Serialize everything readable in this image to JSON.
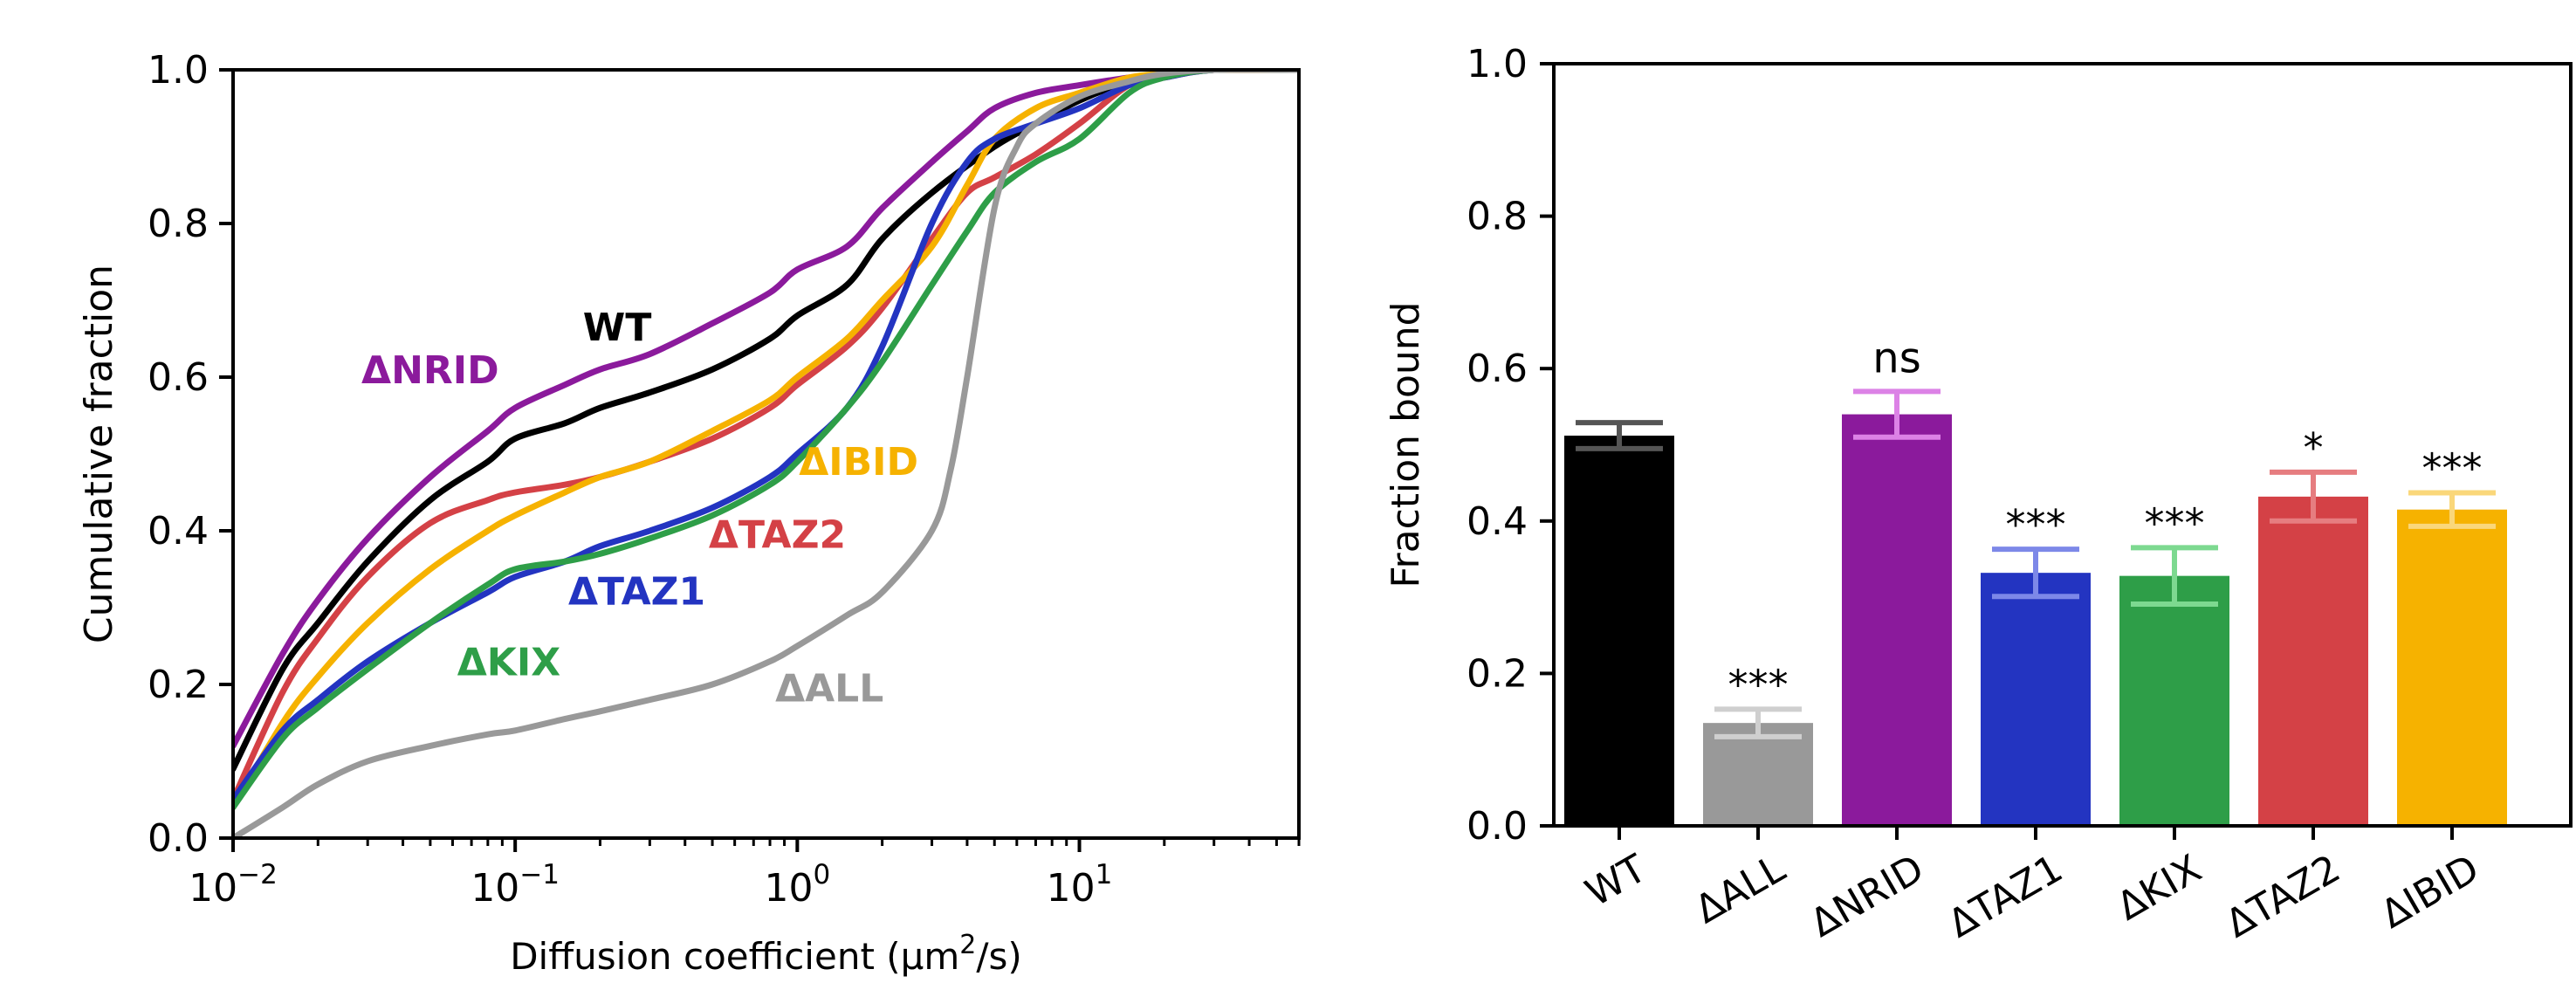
{
  "chart_data": [
    {
      "type": "line",
      "xscale": "log",
      "xlim": [
        0.01,
        60
      ],
      "ylim": [
        0.0,
        1.0
      ],
      "xlabel": "Diffusion coefficient (μm",
      "xlabel_sup": "2",
      "xlabel_tail": "/s)",
      "ylabel": "Cumulative fraction",
      "x_ticks": [
        {
          "value": 0.01,
          "base": "10",
          "exp": "−2"
        },
        {
          "value": 0.1,
          "base": "10",
          "exp": "−1"
        },
        {
          "value": 1,
          "base": "10",
          "exp": "0"
        },
        {
          "value": 10,
          "base": "10",
          "exp": "1"
        }
      ],
      "y_ticks": [
        "0.0",
        "0.2",
        "0.4",
        "0.6",
        "0.8",
        "1.0"
      ],
      "series": [
        {
          "name": "ΔNRID",
          "color": "#8b1a9c",
          "x": [
            0.01,
            0.015,
            0.02,
            0.03,
            0.05,
            0.08,
            0.1,
            0.15,
            0.2,
            0.3,
            0.5,
            0.8,
            1,
            1.5,
            2,
            3,
            4,
            5,
            7,
            10,
            15,
            20,
            30,
            60
          ],
          "y": [
            0.12,
            0.24,
            0.31,
            0.39,
            0.47,
            0.53,
            0.56,
            0.59,
            0.61,
            0.63,
            0.67,
            0.71,
            0.74,
            0.77,
            0.82,
            0.88,
            0.92,
            0.95,
            0.97,
            0.98,
            0.99,
            0.995,
            1.0,
            1.0
          ]
        },
        {
          "name": "WT",
          "color": "#000000",
          "x": [
            0.01,
            0.015,
            0.02,
            0.03,
            0.05,
            0.08,
            0.1,
            0.15,
            0.2,
            0.3,
            0.5,
            0.8,
            1,
            1.5,
            2,
            3,
            5,
            7,
            10,
            15,
            20,
            30,
            60
          ],
          "y": [
            0.09,
            0.22,
            0.28,
            0.36,
            0.44,
            0.49,
            0.52,
            0.54,
            0.56,
            0.58,
            0.61,
            0.65,
            0.68,
            0.72,
            0.78,
            0.84,
            0.9,
            0.93,
            0.96,
            0.985,
            0.995,
            1.0,
            1.0
          ]
        },
        {
          "name": "ΔTAZ2",
          "color": "#d44146",
          "x": [
            0.01,
            0.015,
            0.02,
            0.03,
            0.05,
            0.08,
            0.1,
            0.15,
            0.2,
            0.3,
            0.5,
            0.8,
            1,
            1.5,
            2,
            3,
            4,
            5,
            7,
            10,
            15,
            20,
            30,
            60
          ],
          "y": [
            0.05,
            0.19,
            0.26,
            0.34,
            0.41,
            0.44,
            0.45,
            0.46,
            0.47,
            0.49,
            0.52,
            0.56,
            0.59,
            0.64,
            0.69,
            0.78,
            0.84,
            0.86,
            0.89,
            0.93,
            0.98,
            0.99,
            1.0,
            1.0
          ]
        },
        {
          "name": "ΔIBID",
          "color": "#f6b200",
          "x": [
            0.01,
            0.015,
            0.02,
            0.03,
            0.05,
            0.08,
            0.1,
            0.15,
            0.2,
            0.3,
            0.5,
            0.8,
            1,
            1.5,
            2,
            3,
            4,
            5,
            7,
            10,
            15,
            20,
            30,
            60
          ],
          "y": [
            0.04,
            0.15,
            0.21,
            0.28,
            0.35,
            0.4,
            0.42,
            0.45,
            0.47,
            0.49,
            0.53,
            0.57,
            0.6,
            0.65,
            0.7,
            0.77,
            0.85,
            0.91,
            0.95,
            0.97,
            0.99,
            0.995,
            1.0,
            1.0
          ]
        },
        {
          "name": "ΔTAZ1",
          "color": "#2334c1",
          "x": [
            0.01,
            0.015,
            0.02,
            0.03,
            0.05,
            0.08,
            0.1,
            0.15,
            0.2,
            0.3,
            0.5,
            0.8,
            1,
            1.5,
            2,
            3,
            4,
            5,
            7,
            10,
            15,
            20,
            30,
            60
          ],
          "y": [
            0.05,
            0.14,
            0.18,
            0.23,
            0.28,
            0.32,
            0.34,
            0.36,
            0.38,
            0.4,
            0.43,
            0.47,
            0.5,
            0.56,
            0.64,
            0.8,
            0.88,
            0.91,
            0.93,
            0.95,
            0.98,
            0.99,
            1.0,
            1.0
          ]
        },
        {
          "name": "ΔKIX",
          "color": "#2e9e48",
          "x": [
            0.01,
            0.015,
            0.02,
            0.03,
            0.05,
            0.08,
            0.1,
            0.15,
            0.2,
            0.3,
            0.5,
            0.8,
            1,
            1.5,
            2,
            3,
            4,
            5,
            7,
            10,
            15,
            20,
            30,
            60
          ],
          "y": [
            0.04,
            0.13,
            0.17,
            0.22,
            0.28,
            0.33,
            0.35,
            0.36,
            0.37,
            0.39,
            0.42,
            0.46,
            0.49,
            0.56,
            0.62,
            0.72,
            0.79,
            0.84,
            0.88,
            0.91,
            0.97,
            0.99,
            1.0,
            1.0
          ]
        },
        {
          "name": "ΔALL",
          "color": "#999999",
          "x": [
            0.01,
            0.015,
            0.02,
            0.03,
            0.05,
            0.08,
            0.1,
            0.15,
            0.2,
            0.3,
            0.5,
            0.8,
            1,
            1.5,
            2,
            3,
            3.5,
            4,
            5,
            6,
            7,
            10,
            15,
            20,
            30,
            60
          ],
          "y": [
            0.0,
            0.04,
            0.07,
            0.1,
            0.12,
            0.135,
            0.14,
            0.155,
            0.165,
            0.18,
            0.2,
            0.23,
            0.25,
            0.29,
            0.32,
            0.4,
            0.48,
            0.6,
            0.82,
            0.9,
            0.93,
            0.965,
            0.985,
            0.995,
            1.0,
            1.0
          ]
        }
      ],
      "labels": [
        {
          "text": "ΔNRID",
          "color": "#8b1a9c",
          "x": 0.05,
          "y": 0.592
        },
        {
          "text": "WT",
          "color": "#000000",
          "x": 0.23,
          "y": 0.648
        },
        {
          "text": "ΔIBID",
          "color": "#f6b200",
          "x": 1.65,
          "y": 0.473
        },
        {
          "text": "ΔTAZ2",
          "color": "#d44146",
          "x": 0.85,
          "y": 0.378
        },
        {
          "text": "ΔTAZ1",
          "color": "#2334c1",
          "x": 0.27,
          "y": 0.304
        },
        {
          "text": "ΔKIX",
          "color": "#2e9e48",
          "x": 0.095,
          "y": 0.212
        },
        {
          "text": "ΔALL",
          "color": "#999999",
          "x": 1.3,
          "y": 0.178
        }
      ]
    },
    {
      "type": "bar",
      "ylim": [
        0.0,
        1.0
      ],
      "ylabel": "Fraction bound",
      "xlabel": "",
      "y_ticks": [
        "0.0",
        "0.2",
        "0.4",
        "0.6",
        "0.8",
        "1.0"
      ],
      "categories": [
        "WT",
        "ΔALL",
        "ΔNRID",
        "ΔTAZ1",
        "ΔKIX",
        "ΔTAZ2",
        "ΔIBID"
      ],
      "values": [
        0.512,
        0.135,
        0.54,
        0.332,
        0.328,
        0.432,
        0.415
      ],
      "errors": [
        0.017,
        0.018,
        0.03,
        0.031,
        0.037,
        0.032,
        0.022
      ],
      "colors": [
        "#000000",
        "#999999",
        "#8b1a9c",
        "#2334c1",
        "#2e9e48",
        "#d44146",
        "#f6b200"
      ],
      "error_colors": [
        "#555555",
        "#cfcfcf",
        "#dc82e6",
        "#7d88e8",
        "#7dd990",
        "#e67d80",
        "#fad77a"
      ],
      "significance": [
        "",
        "***",
        "ns",
        "***",
        "***",
        "*",
        "***"
      ]
    }
  ]
}
